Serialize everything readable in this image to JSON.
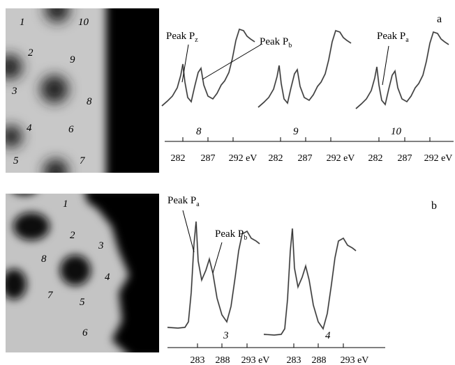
{
  "panels": [
    {
      "letter": "a",
      "image_labels": [
        "1",
        "10",
        "2",
        "9",
        "3",
        "8",
        "4",
        "6",
        "5",
        "7"
      ],
      "peaks": [
        {
          "text": "Peak P",
          "sub": "z"
        },
        {
          "text": "Peak P",
          "sub": "b"
        },
        {
          "text": "Peak P",
          "sub": "a"
        }
      ],
      "spectra": [
        {
          "label": "8",
          "ticks": [
            "282",
            "287",
            "292 eV"
          ]
        },
        {
          "label": "9",
          "ticks": [
            "282",
            "287",
            "292 eV"
          ]
        },
        {
          "label": "10",
          "ticks": [
            "282",
            "287",
            "292 eV"
          ]
        }
      ]
    },
    {
      "letter": "b",
      "image_labels": [
        "1",
        "2",
        "3",
        "8",
        "4",
        "7",
        "5",
        "6"
      ],
      "peaks": [
        {
          "text": "Peak P",
          "sub": "a"
        },
        {
          "text": "Peak P",
          "sub": "b"
        }
      ],
      "spectra": [
        {
          "label": "3",
          "ticks": [
            "283",
            "288",
            "293 eV"
          ]
        },
        {
          "label": "4",
          "ticks": [
            "283",
            "288",
            "293 eV"
          ]
        }
      ]
    }
  ]
}
